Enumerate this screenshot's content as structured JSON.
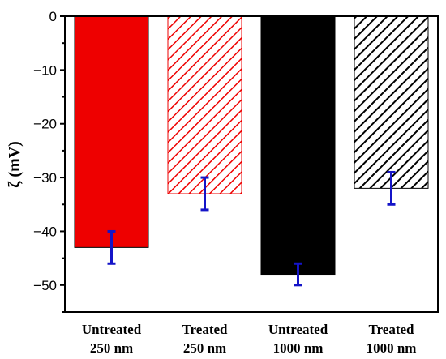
{
  "chart_data": {
    "type": "bar",
    "categories": [
      "Untreated\n250 nm",
      "Treated\n250 nm",
      "Untreated\n1000 nm",
      "Treated\n1000 nm"
    ],
    "values": [
      -43,
      -33,
      -48,
      -32
    ],
    "errors": [
      3,
      3,
      2,
      3
    ],
    "bar_colors": [
      "#ee0000",
      "#ee0000",
      "#000000",
      "#000000"
    ],
    "bar_fills": [
      "solid",
      "hatched",
      "solid",
      "hatched"
    ],
    "error_bar_color": "#1414c8",
    "title": "",
    "xlabel": "",
    "ylabel": "ζ (mV)",
    "ylim": [
      -55,
      0
    ],
    "yticks": [
      0,
      -10,
      -20,
      -30,
      -40,
      -50
    ],
    "grid": false,
    "legend": "none"
  }
}
